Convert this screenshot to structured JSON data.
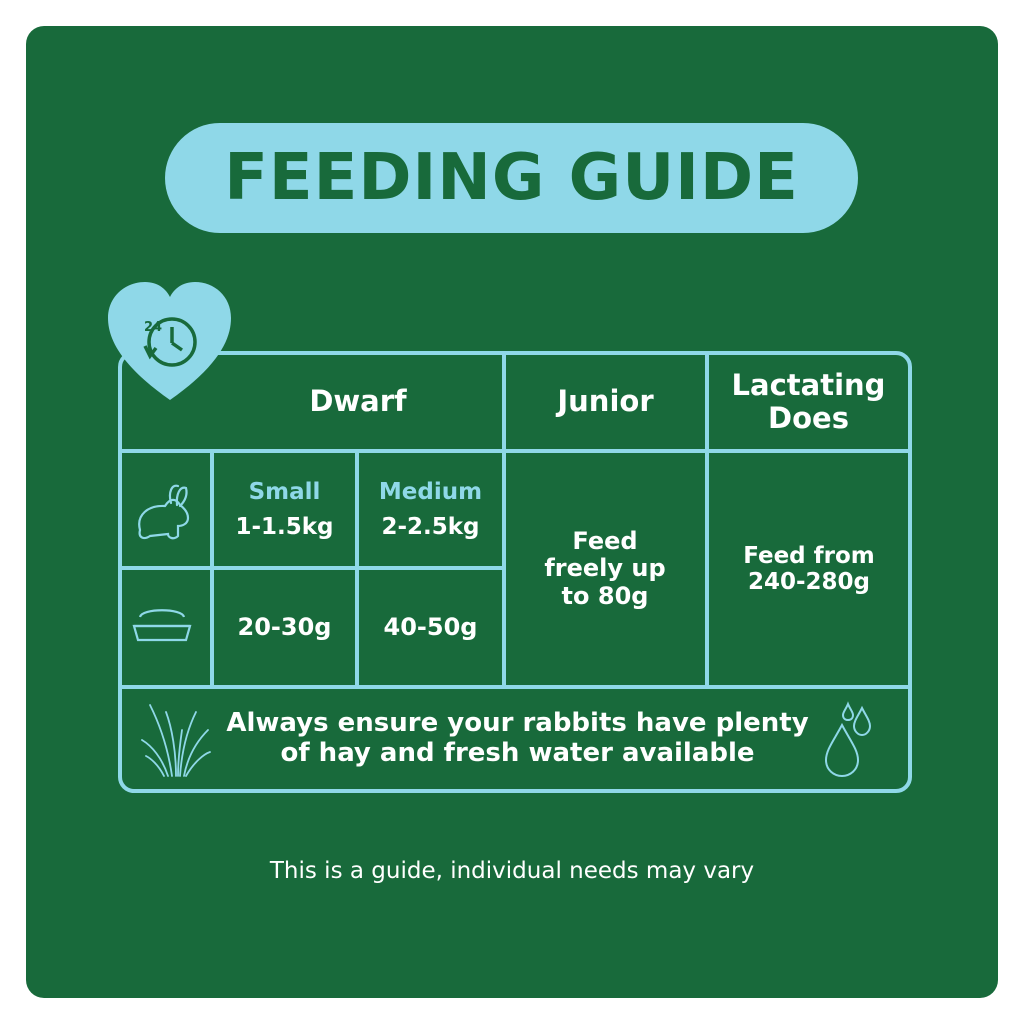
{
  "title": "FEEDING GUIDE",
  "badge": {
    "number": "24",
    "icon": "24-hour-clock-icon"
  },
  "table": {
    "headers": {
      "dwarf": "Dwarf",
      "junior": "Junior",
      "lactating": "Lactating Does"
    },
    "dwarf": {
      "small_label": "Small",
      "small_weight": "1-1.5kg",
      "medium_label": "Medium",
      "medium_weight": "2-2.5kg",
      "small_feed": "20-30g",
      "medium_feed": "40-50g"
    },
    "junior_feed": "Feed freely up to 80g",
    "lactating_feed": "Feed from 240-280g",
    "note": "Always ensure your rabbits have plenty of hay and fresh water available"
  },
  "footer": "This is a guide, individual needs may vary",
  "colors": {
    "background": "#186a3b",
    "accent": "#8fd8e8",
    "text": "#ffffff"
  }
}
